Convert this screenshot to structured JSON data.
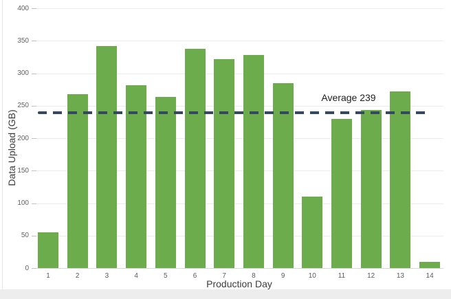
{
  "chart_data": {
    "type": "bar",
    "title": "",
    "xlabel": "Production Day",
    "ylabel": "Data Upload (GB)",
    "categories": [
      "1",
      "2",
      "3",
      "4",
      "5",
      "6",
      "7",
      "8",
      "9",
      "10",
      "11",
      "12",
      "13",
      "14"
    ],
    "values": [
      55,
      268,
      342,
      282,
      263,
      338,
      322,
      328,
      285,
      110,
      230,
      243,
      272,
      9
    ],
    "ylim": [
      0,
      400
    ],
    "ytick_step": 50,
    "ytick_labels": [
      "0",
      "50",
      "100",
      "150",
      "200",
      "250",
      "300",
      "350",
      "400"
    ],
    "grid": true,
    "legend": "none",
    "average_line": {
      "value": 239,
      "label": "Average 239",
      "style": "dashed"
    },
    "colors": {
      "bar_fill": "#6cac4d",
      "average_line": "#34495e",
      "gridline": "#ebebeb",
      "axis_line": "#d8d8d8",
      "tick_text": "#5f5f5f",
      "axis_title_text": "#3d3d3d",
      "annotation_text": "#1f1f1f",
      "background": "#ffffff",
      "bottom_strip": "#ededed"
    }
  }
}
